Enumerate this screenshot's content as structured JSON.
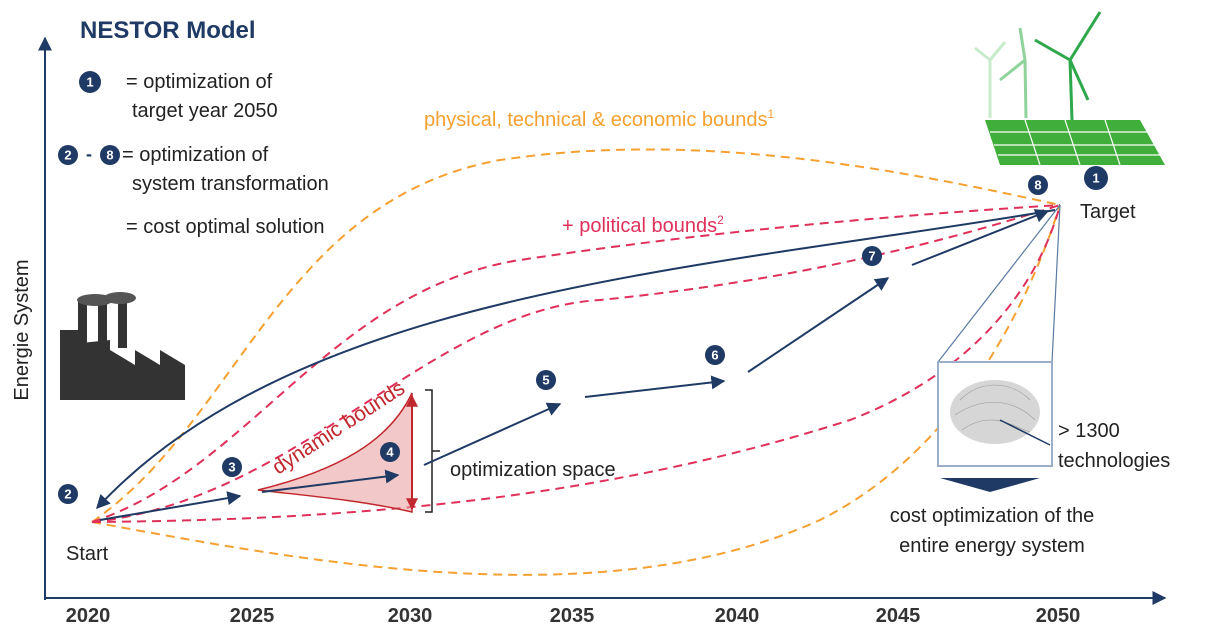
{
  "title": "NESTOR Model",
  "legend": [
    {
      "badge": "1",
      "lines": [
        "= optimization of",
        "target year 2050"
      ]
    },
    {
      "badges": [
        "2",
        "8"
      ],
      "separator": "-",
      "lines": [
        "= optimization of",
        "system transformation"
      ]
    },
    {
      "lines": [
        "= cost optimal solution"
      ]
    }
  ],
  "y_axis_label": "Energie System",
  "x_axis_labels": [
    "2020",
    "2025",
    "2030",
    "2035",
    "2040",
    "2045",
    "2050"
  ],
  "bounds": {
    "physical": {
      "text": "physical, technical & economic bounds",
      "note": "1"
    },
    "political": {
      "text": "+ political bounds",
      "note": "2"
    },
    "dynamic": "dynamic bounds",
    "space": "optimization space"
  },
  "start": "Start",
  "target": "Target",
  "markers": [
    "1",
    "2",
    "3",
    "4",
    "5",
    "6",
    "7",
    "8"
  ],
  "technologies": [
    "> 1300",
    "technologies"
  ],
  "summary": [
    "cost optimization of the",
    "entire energy system"
  ]
}
